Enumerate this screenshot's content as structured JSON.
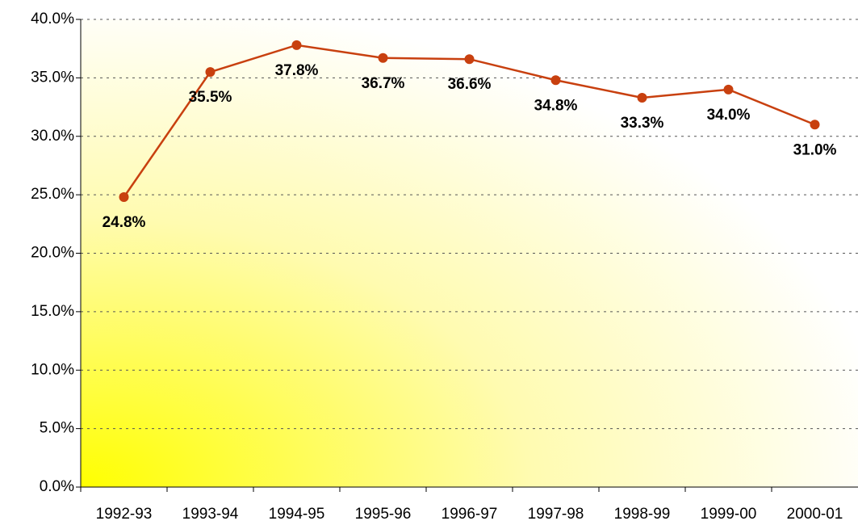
{
  "chart_data": {
    "type": "line",
    "categories": [
      "1992-93",
      "1993-94",
      "1994-95",
      "1995-96",
      "1996-97",
      "1997-98",
      "1998-99",
      "1999-00",
      "2000-01"
    ],
    "series": [
      {
        "color": "#c8400f",
        "values": [
          24.8,
          35.5,
          37.8,
          36.7,
          36.6,
          34.8,
          33.3,
          34.0,
          31.0
        ],
        "value_labels": [
          "24.8%",
          "35.5%",
          "37.8%",
          "36.7%",
          "36.6%",
          "34.8%",
          "33.3%",
          "34.0%",
          "31.0%"
        ]
      }
    ],
    "ylim": [
      0,
      40
    ],
    "yticks": [
      {
        "value": 0,
        "label": "0.0%"
      },
      {
        "value": 5,
        "label": "5.0%"
      },
      {
        "value": 10,
        "label": "10.0%"
      },
      {
        "value": 15,
        "label": "15.0%"
      },
      {
        "value": 20,
        "label": "20.0%"
      },
      {
        "value": 25,
        "label": "25.0%"
      },
      {
        "value": 30,
        "label": "30.0%"
      },
      {
        "value": 35,
        "label": "35.0%"
      },
      {
        "value": 40,
        "label": "40.0%"
      }
    ],
    "grid": true
  }
}
